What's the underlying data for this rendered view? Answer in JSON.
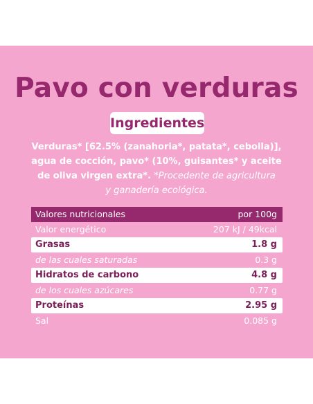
{
  "title": "Pavo con verduras",
  "ingredients_heading": "Ingredientes",
  "ingredients": {
    "line1": "Verduras* [62.5% (zanahoria*, patata*, cebolla)],",
    "line2": "agua de cocción, pavo* (10%, guisantes* y aceite",
    "line3_bold": "de oliva virgen extra*.",
    "line3_italic": " *Procedente de agricultura",
    "line4_italic": "y ganadería ecológica."
  },
  "nutrition": {
    "header": {
      "label": "Valores nutricionales",
      "value": "por 100g"
    },
    "rows": [
      {
        "label": "Valor energético",
        "value": "207 kJ / 49kcal"
      },
      {
        "label": "Grasas",
        "value": "1.8 g"
      },
      {
        "label": "de las cuales saturadas",
        "value": "0.3 g"
      },
      {
        "label": "Hidratos de carbono",
        "value": "4.8 g"
      },
      {
        "label": "de los cuales azúcares",
        "value": "0.77 g"
      },
      {
        "label": "Proteínas",
        "value": "2.95 g"
      },
      {
        "label": "Sal",
        "value": "0.085 g"
      }
    ]
  },
  "colors": {
    "panel_bg": "#f4a6cf",
    "accent": "#96286d",
    "white": "#ffffff"
  }
}
